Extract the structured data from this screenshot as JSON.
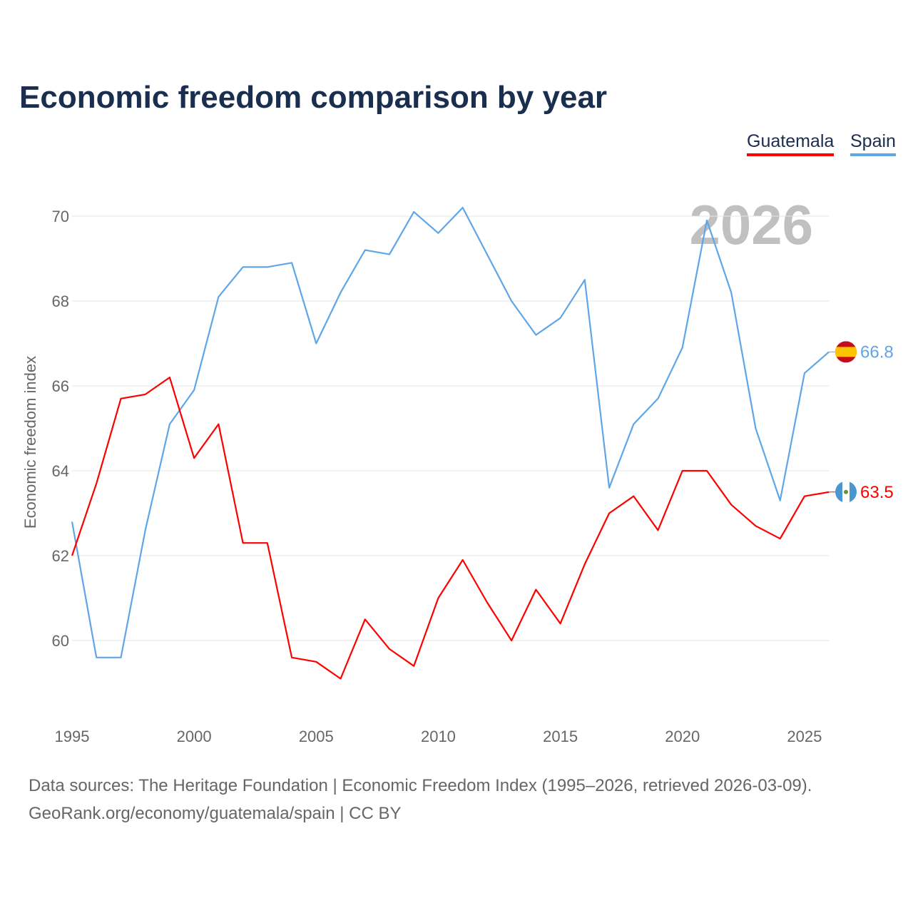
{
  "chart_data": {
    "type": "line",
    "title": "Economic freedom comparison by year",
    "xlabel": "",
    "ylabel": "Economic freedom index",
    "watermark_year": "2026",
    "x": [
      1995,
      1996,
      1997,
      1998,
      1999,
      2000,
      2001,
      2002,
      2003,
      2004,
      2005,
      2006,
      2007,
      2008,
      2009,
      2010,
      2011,
      2012,
      2013,
      2014,
      2015,
      2016,
      2017,
      2018,
      2019,
      2020,
      2021,
      2022,
      2023,
      2024,
      2025,
      2026
    ],
    "xticks": [
      "1995",
      "2000",
      "2005",
      "2010",
      "2015",
      "2020",
      "2025"
    ],
    "yticks": [
      "60",
      "62",
      "64",
      "66",
      "68",
      "70"
    ],
    "ylim": [
      58.3,
      70.9
    ],
    "grid": true,
    "legend_position": "top-right",
    "series": [
      {
        "name": "Guatemala",
        "color": "#ff0000",
        "end_label": "63.5",
        "values": [
          62.0,
          63.7,
          65.7,
          65.8,
          66.2,
          64.3,
          65.1,
          62.3,
          62.3,
          59.6,
          59.5,
          59.1,
          60.5,
          59.8,
          59.4,
          61.0,
          61.9,
          60.9,
          60.0,
          61.2,
          60.4,
          61.8,
          63.0,
          63.4,
          62.6,
          64.0,
          64.0,
          63.2,
          62.7,
          62.4,
          63.4,
          63.5
        ]
      },
      {
        "name": "Spain",
        "color": "#5ea6e8",
        "end_label": "66.8",
        "values": [
          62.8,
          59.6,
          59.6,
          62.6,
          65.1,
          65.9,
          68.1,
          68.8,
          68.8,
          68.9,
          67.0,
          68.2,
          69.2,
          69.1,
          70.1,
          69.6,
          70.2,
          69.1,
          68.0,
          67.2,
          67.6,
          68.5,
          63.6,
          65.1,
          65.7,
          66.9,
          69.9,
          68.2,
          65.0,
          63.3,
          66.3,
          66.8
        ]
      }
    ]
  },
  "footer": {
    "line1": "Data sources: The Heritage Foundation | Economic Freedom Index (1995–2026, retrieved 2026-03-09).",
    "line2": "GeoRank.org/economy/guatemala/spain | CC BY"
  }
}
